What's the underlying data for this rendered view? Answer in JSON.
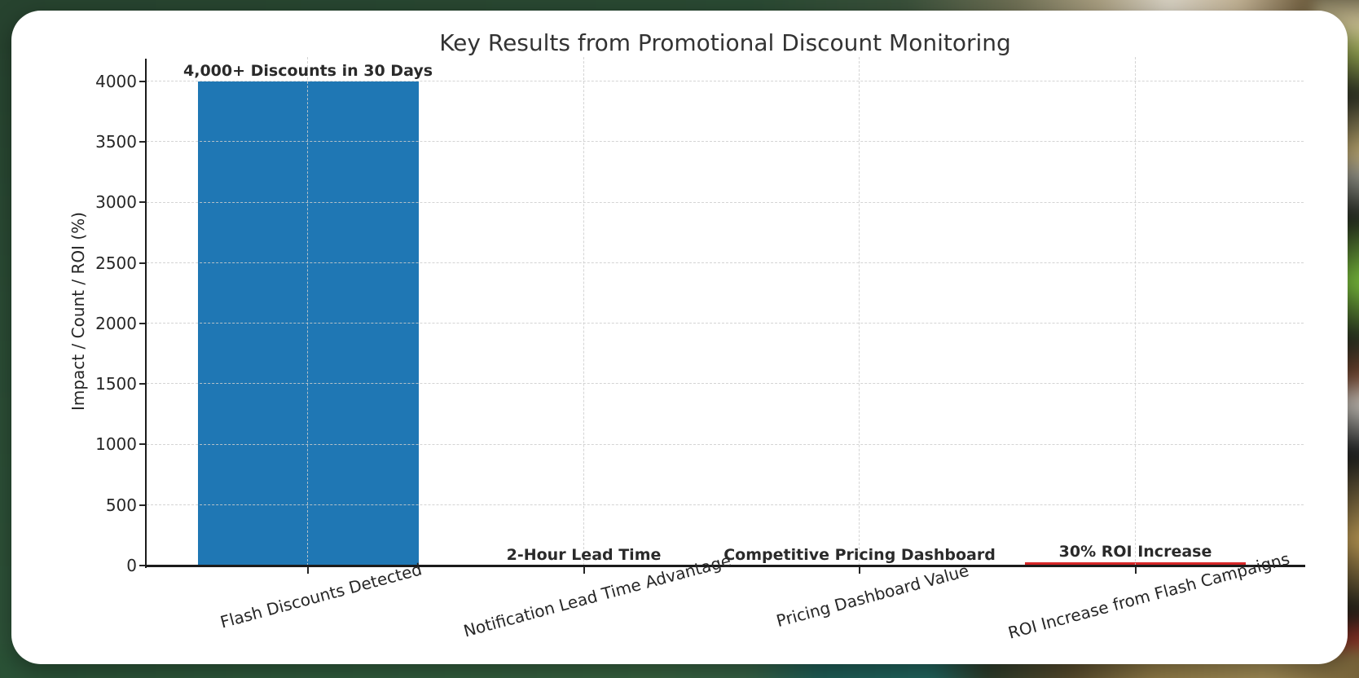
{
  "colors": {
    "card_background": "#ffffff",
    "bar_blue": "#1f77b4",
    "bar_red": "#d62728",
    "grid": "#cdcdcd",
    "axis": "#1b1b1b",
    "text": "#262626",
    "backdrop_green": "#2b4c35"
  },
  "chart_data": {
    "type": "bar",
    "title": "Key Results from Promotional Discount Monitoring",
    "xlabel": "",
    "ylabel": "Impact / Count / ROI (%)",
    "categories": [
      "Flash Discounts Detected",
      "Notification Lead Time Advantage",
      "Pricing Dashboard Value",
      "ROI Increase from Flash Campaigns"
    ],
    "values": [
      4000,
      2,
      0,
      30
    ],
    "bar_labels": [
      "4,000+ Discounts in 30 Days",
      "2-Hour Lead Time",
      "Competitive Pricing Dashboard",
      "30% ROI Increase"
    ],
    "bar_colors": [
      "#1f77b4",
      "#1f77b4",
      "#1f77b4",
      "#d62728"
    ],
    "yticks": [
      0,
      500,
      1000,
      1500,
      2000,
      2500,
      3000,
      3500,
      4000
    ],
    "ylim": [
      0,
      4200
    ],
    "grid": true,
    "grid_line_style": "dashed",
    "xtick_rotation_deg": 15,
    "legend_position": "none"
  }
}
